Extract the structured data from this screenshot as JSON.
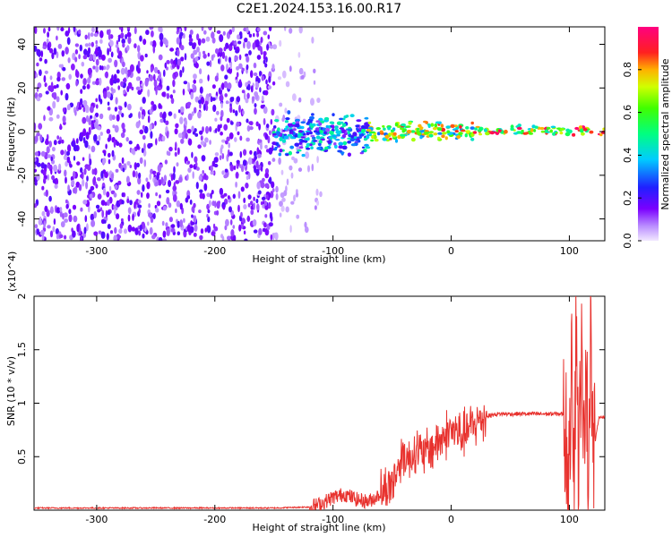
{
  "title": "C2E1.2024.153.16.00.R17",
  "chart_data": [
    {
      "type": "heatmap",
      "xlabel": "Height of straight line (km)",
      "ylabel": "Frequency (Hz)",
      "xlim": [
        -353,
        130
      ],
      "ylim": [
        -50,
        48
      ],
      "xticks": [
        -300,
        -200,
        -100,
        0,
        100
      ],
      "yticks": [
        -40,
        -20,
        0,
        20,
        40
      ],
      "colorbar": {
        "label": "Normalized spectral amplitude",
        "range": [
          0,
          1
        ],
        "ticks": [
          0.0,
          0.2,
          0.4,
          0.6,
          0.8
        ],
        "colormap": "rainbow (purple-blue-cyan-green-yellow-red-magenta)"
      },
      "regions": [
        {
          "x": [
            -353,
            -150
          ],
          "y": [
            -50,
            48
          ],
          "amplitude": [
            0.05,
            0.2
          ],
          "description": "dense speckle noise"
        },
        {
          "x": [
            -150,
            -110
          ],
          "y": [
            -50,
            48
          ],
          "amplitude": [
            0.02,
            0.08
          ],
          "description": "sparse speckle"
        },
        {
          "x": [
            -150,
            -70
          ],
          "y": [
            -12,
            10
          ],
          "amplitude": [
            0.1,
            0.5
          ],
          "description": "broad central band"
        },
        {
          "x": [
            -70,
            20
          ],
          "y": [
            -5,
            5
          ],
          "amplitude": [
            0.3,
            0.9
          ],
          "description": "narrowing band"
        },
        {
          "x": [
            20,
            130
          ],
          "y": [
            -2,
            3
          ],
          "amplitude": [
            0.4,
            1.0
          ],
          "description": "narrow band, peak near 80-120 km"
        }
      ]
    },
    {
      "type": "line",
      "xlabel": "Height of straight line (km)",
      "ylabel": "SNR (10 * v/v)",
      "y_multiplier": "(x10^4)",
      "xlim": [
        -353,
        130
      ],
      "ylim": [
        0,
        2.0
      ],
      "xticks": [
        -300,
        -200,
        -100,
        0,
        100
      ],
      "yticks": [
        0.5,
        1.0,
        1.5,
        2.0
      ],
      "color": "#e8322e",
      "x": [
        -353,
        -300,
        -250,
        -200,
        -150,
        -120,
        -110,
        -100,
        -90,
        -80,
        -70,
        -60,
        -50,
        -45,
        -40,
        -35,
        -30,
        -25,
        -20,
        -15,
        -10,
        -5,
        0,
        5,
        10,
        15,
        20,
        25,
        30,
        35,
        40,
        50,
        60,
        70,
        80,
        90,
        95,
        98,
        100,
        102,
        104,
        106,
        108,
        110,
        112,
        114,
        116,
        118,
        120,
        125,
        130
      ],
      "values": [
        0.02,
        0.02,
        0.02,
        0.02,
        0.02,
        0.03,
        0.06,
        0.12,
        0.15,
        0.1,
        0.08,
        0.15,
        0.25,
        0.4,
        0.55,
        0.45,
        0.6,
        0.5,
        0.55,
        0.6,
        0.65,
        0.7,
        0.75,
        0.72,
        0.7,
        0.75,
        0.8,
        0.85,
        0.88,
        0.89,
        0.9,
        0.9,
        0.9,
        0.9,
        0.9,
        0.9,
        0.9,
        0.6,
        0.05,
        2.0,
        0.3,
        1.9,
        0.2,
        1.6,
        0.3,
        1.75,
        0.2,
        1.95,
        0.5,
        0.87,
        0.87
      ]
    }
  ]
}
